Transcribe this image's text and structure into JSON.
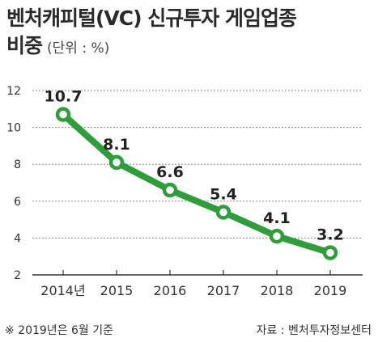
{
  "header": {
    "title_line1": "벤처캐피털(VC) 신규투자 게임업종",
    "title_line2": "비중",
    "unit": "(단위 : %)"
  },
  "footer": {
    "note": "※ 2019년은 6월 기준",
    "source": "자료 : 벤처투자정보센터"
  },
  "chart_data": {
    "type": "line",
    "title": "벤처캐피털(VC) 신규투자 게임업종 비중",
    "unit": "(단위 : %)",
    "categories": [
      "2014년",
      "2015",
      "2016",
      "2017",
      "2018",
      "2019"
    ],
    "series": [
      {
        "values": [
          10.7,
          8.1,
          6.6,
          5.4,
          4.1,
          3.2
        ],
        "labels": [
          "10.7",
          "8.1",
          "6.6",
          "5.4",
          "4.1",
          "3.2"
        ]
      }
    ],
    "ylim": [
      2,
      12
    ],
    "yticks": [
      2,
      4,
      6,
      8,
      10,
      12
    ],
    "grid": "horizontal",
    "line_color": "#2e9e3a",
    "marker_fill": "#ffffff"
  }
}
